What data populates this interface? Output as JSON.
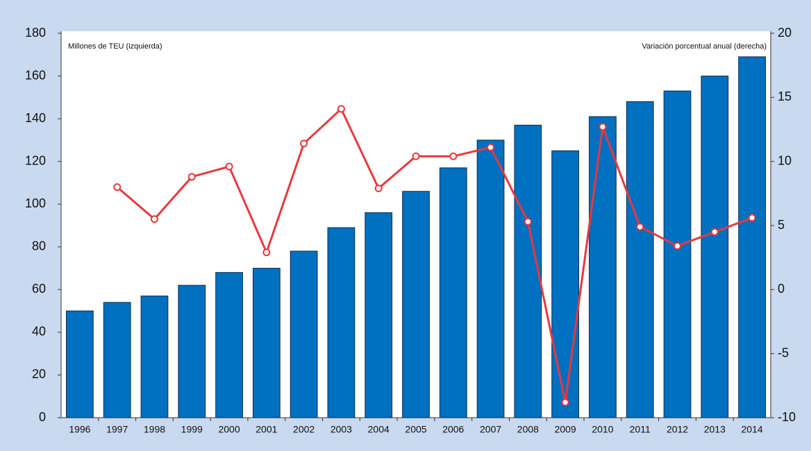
{
  "chart_data": {
    "type": "bar",
    "ylabel": "Millones de TEU (izquierda)",
    "y2label": "Variación porcentual anual (derecha)",
    "categories": [
      "1996",
      "1997",
      "1998",
      "1999",
      "2000",
      "2001",
      "2002",
      "2003",
      "2004",
      "2005",
      "2006",
      "2007",
      "2008",
      "2009",
      "2010",
      "2011",
      "2012",
      "2013",
      "2014"
    ],
    "series": [
      {
        "name": "Millones de TEU",
        "type": "bar",
        "color": "#0070c0",
        "values": [
          50,
          54,
          57,
          62,
          68,
          70,
          78,
          89,
          96,
          106,
          117,
          130,
          137,
          125,
          141,
          148,
          153,
          160,
          169
        ]
      },
      {
        "name": "Variación porcentual anual",
        "type": "line",
        "axis": "y2",
        "color": "#e8383d",
        "values": [
          null,
          8.0,
          5.5,
          8.8,
          9.6,
          2.9,
          11.4,
          14.1,
          7.9,
          10.4,
          10.4,
          11.1,
          5.3,
          -8.8,
          12.7,
          4.9,
          3.4,
          4.5,
          5.6
        ]
      }
    ],
    "ylim": [
      0,
      180
    ],
    "yticks": [
      0,
      20,
      40,
      60,
      80,
      100,
      120,
      140,
      160,
      180
    ],
    "y2lim": [
      -10,
      20
    ],
    "y2ticks": [
      -10,
      -5,
      0,
      5,
      10,
      15,
      20
    ],
    "grid": false
  }
}
